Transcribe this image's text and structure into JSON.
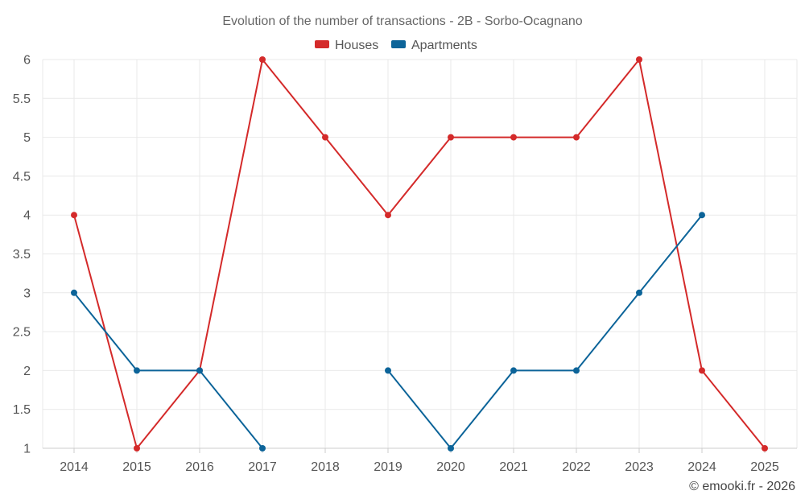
{
  "chart_data": {
    "type": "line",
    "title": "Evolution of the number of transactions - 2B - Sorbo-Ocagnano",
    "categories": [
      "2014",
      "2015",
      "2016",
      "2017",
      "2018",
      "2019",
      "2020",
      "2021",
      "2022",
      "2023",
      "2024",
      "2025"
    ],
    "series": [
      {
        "name": "Houses",
        "color": "#d42a2a",
        "values": [
          4,
          1,
          2,
          6,
          5,
          4,
          5,
          5,
          5,
          6,
          2,
          1
        ]
      },
      {
        "name": "Apartments",
        "color": "#0c6499",
        "values": [
          3,
          2,
          2,
          1,
          null,
          2,
          1,
          2,
          2,
          3,
          4,
          null
        ]
      }
    ],
    "yticks": [
      "1",
      "1.5",
      "2",
      "2.5",
      "3",
      "3.5",
      "4",
      "4.5",
      "5",
      "5.5",
      "6"
    ],
    "ylim": [
      1,
      6
    ],
    "grid": true,
    "legend": "top-center"
  },
  "credit": "© emooki.fr - 2026"
}
